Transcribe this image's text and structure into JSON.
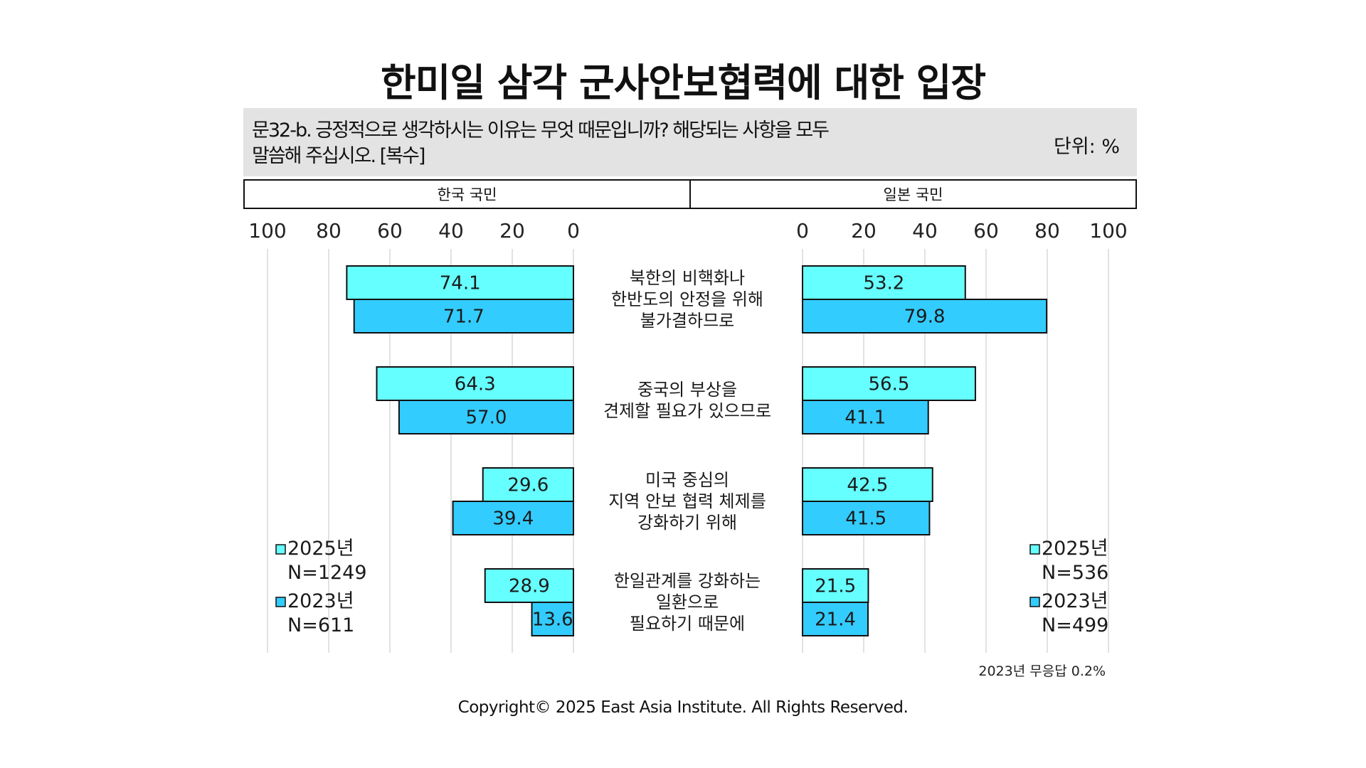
{
  "title": "한미일 삼각 군사안보협력에 대한 입장",
  "question": {
    "line1": "문32-b. 긍정적으로 생각하시는 이유는 무엇 때문입니까? 해당되는 사항을 모두",
    "line2": "말씀해 주십시오. [복수]",
    "unit": "단위: %"
  },
  "panels": {
    "korea": "한국 국민",
    "japan": "일본 국민"
  },
  "colors": {
    "series_2025": "#66ffff",
    "series_2023": "#33ccff",
    "grid": "#d9d9d9"
  },
  "note": "2023년 무응답 0.2%",
  "copyright": "Copyright© 2025 East Asia Institute. All Rights Reserved.",
  "chart_data": {
    "type": "bar",
    "orientation": "horizontal",
    "categories": [
      [
        "북한의 비핵화나",
        "한반도의 안정을 위해",
        "불가결하므로"
      ],
      [
        "중국의 부상을",
        "견제할 필요가 있으므로"
      ],
      [
        "미국 중심의",
        "지역 안보 협력 체제를",
        "강화하기 위해"
      ],
      [
        "한일관계를 강화하는",
        "일환으로",
        "필요하기 때문에"
      ]
    ],
    "ticks": [
      "0",
      "20",
      "40",
      "60",
      "80",
      "100"
    ],
    "xlim": [
      0,
      100
    ],
    "grid": true,
    "panels": [
      {
        "name": "한국 국민",
        "direction": "left",
        "series": [
          {
            "name": "2025년",
            "n_label": "N=1249",
            "values": [
              74.1,
              64.3,
              29.6,
              28.9
            ]
          },
          {
            "name": "2023년",
            "n_label": "N=611",
            "values": [
              71.7,
              57.0,
              39.4,
              13.6
            ]
          }
        ]
      },
      {
        "name": "일본 국민",
        "direction": "right",
        "series": [
          {
            "name": "2025년",
            "n_label": "N=536",
            "values": [
              53.2,
              56.5,
              42.5,
              21.5
            ]
          },
          {
            "name": "2023년",
            "n_label": "N=499",
            "values": [
              79.8,
              41.1,
              41.5,
              21.4
            ]
          }
        ]
      }
    ],
    "legend_placement": "bottom-left and bottom-right"
  }
}
